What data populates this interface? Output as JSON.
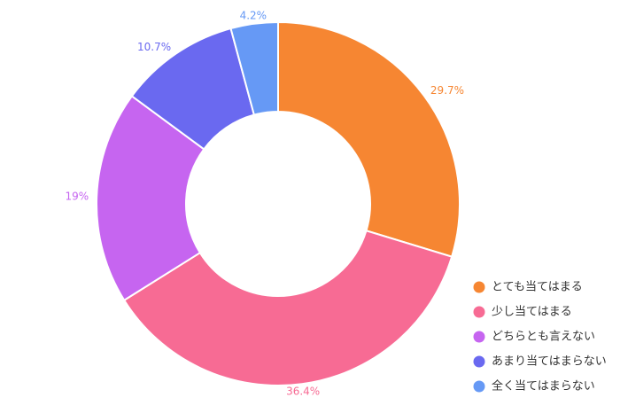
{
  "chart_data": {
    "type": "pie",
    "donut": true,
    "legend_position": "bottom-right",
    "slices": [
      {
        "label": "とても当てはまる",
        "value": 29.7,
        "value_label": "29.7%",
        "color": "#f68632"
      },
      {
        "label": "少し当てはまる",
        "value": 36.4,
        "value_label": "36.4%",
        "color": "#f76b94"
      },
      {
        "label": "どちらとも言えない",
        "value": 19,
        "value_label": "19%",
        "color": "#c665f0"
      },
      {
        "label": "あまり当てはまらない",
        "value": 10.7,
        "value_label": "10.7%",
        "color": "#6a69f0"
      },
      {
        "label": "全く当てはまらない",
        "value": 4.2,
        "value_label": "4.2%",
        "color": "#6699f5"
      }
    ]
  }
}
